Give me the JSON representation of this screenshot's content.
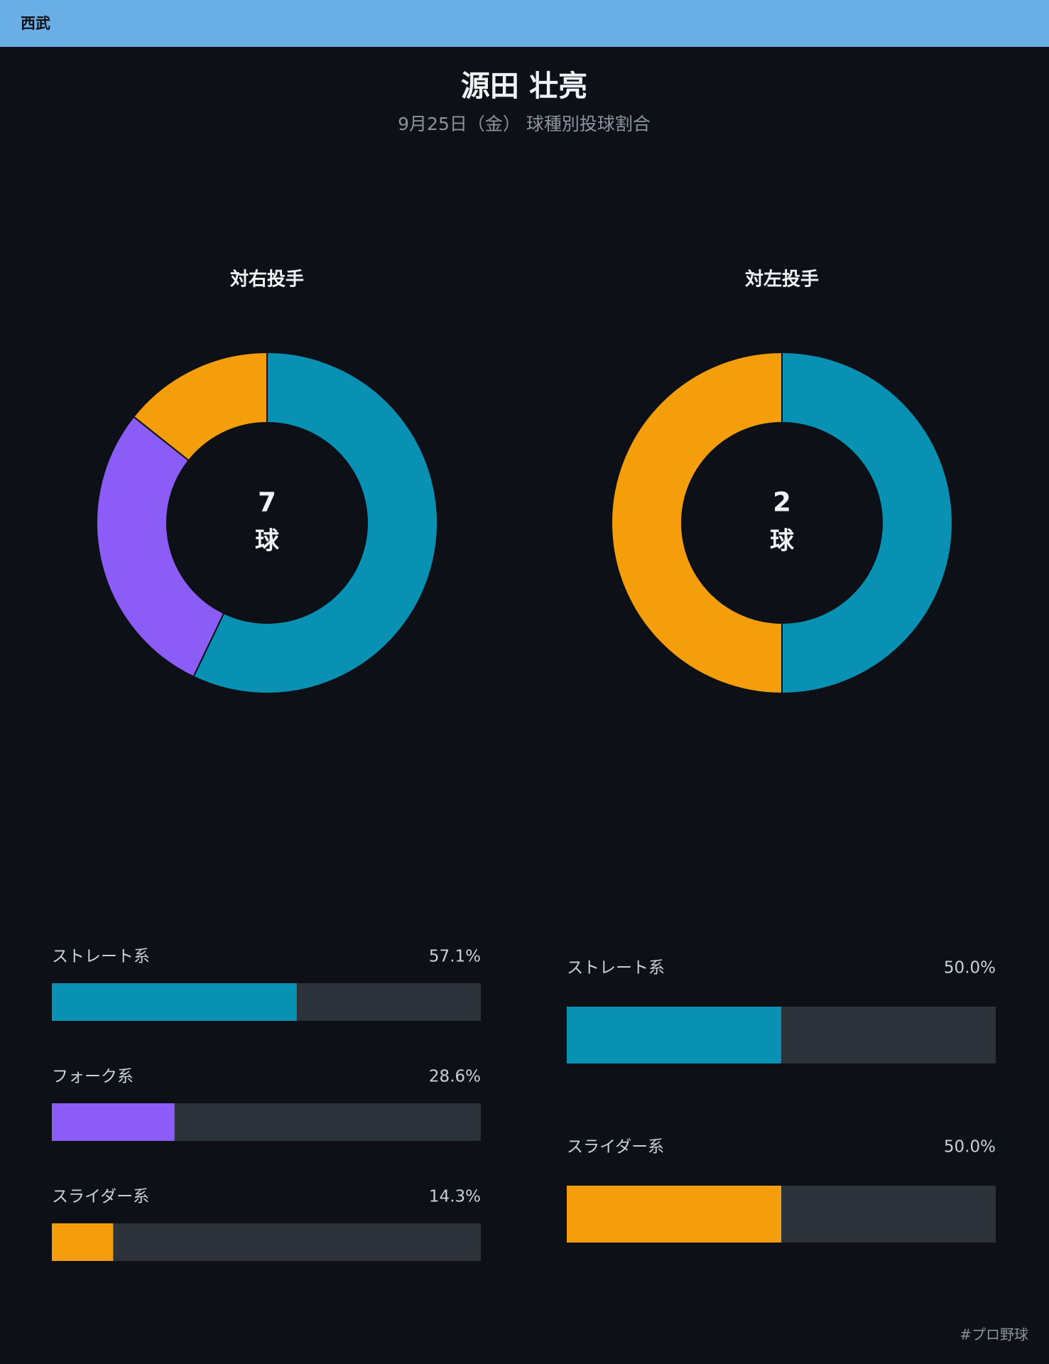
{
  "header": {
    "team": "西武"
  },
  "title": "源田 壮亮",
  "subtitle": "9月25日（金） 球種別投球割合",
  "chart_data": [
    {
      "type": "pie",
      "title": "対右投手",
      "total": 7,
      "unit": "球",
      "categories": [
        "ストレート系",
        "フォーク系",
        "スライダー系"
      ],
      "values": [
        57.1,
        28.6,
        14.3
      ],
      "value_labels": [
        "57.1%",
        "28.6%",
        "14.3%"
      ],
      "colors": [
        "#0891b2",
        "#8b5cf6",
        "#f59e0b"
      ]
    },
    {
      "type": "pie",
      "title": "対左投手",
      "total": 2,
      "unit": "球",
      "categories": [
        "ストレート系",
        "スライダー系"
      ],
      "values": [
        50.0,
        50.0
      ],
      "value_labels": [
        "50.0%",
        "50.0%"
      ],
      "colors": [
        "#0891b2",
        "#f59e0b"
      ]
    }
  ],
  "footer": "#プロ野球"
}
